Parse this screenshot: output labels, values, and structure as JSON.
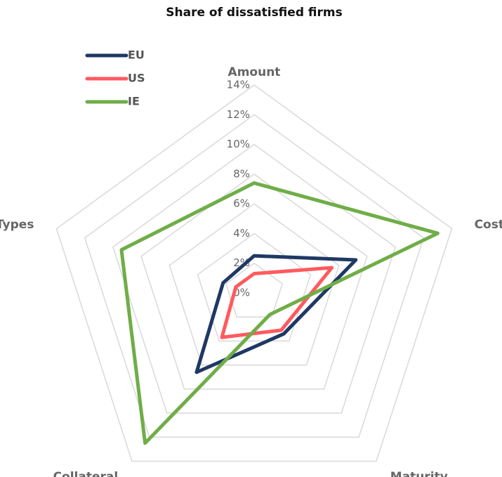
{
  "chart_data": {
    "type": "radar",
    "title": "Share of dissatisfied firms",
    "categories": [
      "Amount",
      "Cost",
      "Maturity",
      "Collateral",
      "Types"
    ],
    "series": [
      {
        "name": "EU",
        "color": "#1f3864",
        "values": [
          2.5,
          7.2,
          3.4,
          6.6,
          2.2
        ]
      },
      {
        "name": "US",
        "color": "#ff5a5f",
        "values": [
          1.3,
          5.5,
          3.1,
          3.7,
          1.3
        ]
      },
      {
        "name": "IE",
        "color": "#70ad47",
        "values": [
          7.4,
          13.0,
          1.8,
          12.5,
          9.4
        ]
      }
    ],
    "ylim": [
      0,
      14
    ],
    "yticks": [
      {
        "value": 0,
        "label": "0%"
      },
      {
        "value": 2,
        "label": "2%"
      },
      {
        "value": 4,
        "label": "4%"
      },
      {
        "value": 6,
        "label": "6%"
      },
      {
        "value": 8,
        "label": "8%"
      },
      {
        "value": 10,
        "label": "10%"
      },
      {
        "value": 12,
        "label": "12%"
      },
      {
        "value": 14,
        "label": "14%"
      }
    ],
    "grid": true,
    "legend": "top-left"
  }
}
